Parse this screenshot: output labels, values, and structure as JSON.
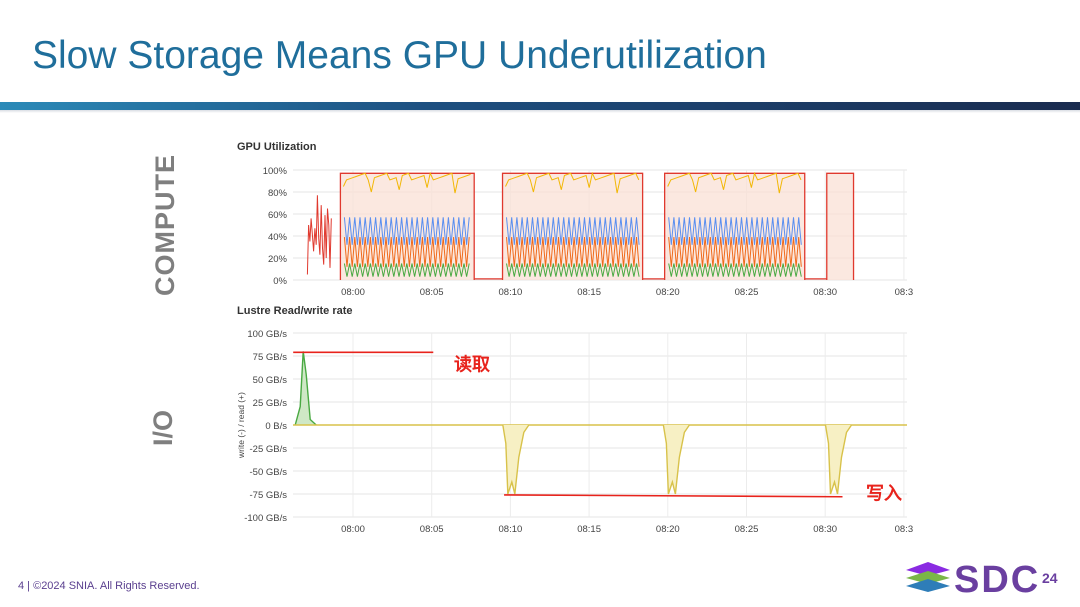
{
  "slide": {
    "title": "Slow Storage Means GPU Underutilization",
    "compute_label": "COMPUTE",
    "io_label": "I/O",
    "footer": "4 | ©2024 SNIA. All Rights Reserved.",
    "logo_text": "SDC",
    "logo_year": "24",
    "annotation_read": "读取",
    "annotation_write": "写入",
    "accent_color": "#1f6e9b",
    "annotation_color": "#e8231c"
  },
  "chart_data": [
    {
      "type": "line",
      "title": "GPU Utilization",
      "y_ticks": [
        "100%",
        "80%",
        "60%",
        "40%",
        "20%",
        "0%"
      ],
      "x_ticks": [
        "08:00",
        "08:05",
        "08:10",
        "08:15",
        "08:20",
        "08:25",
        "08:30",
        "08:3"
      ],
      "ylim": [
        0,
        100
      ],
      "grid": true,
      "series_colors": [
        "#e0392e",
        "#f2b705",
        "#5b8ff0",
        "#f06a1a",
        "#49a942"
      ],
      "busy_periods_minutes": [
        [
          -0.8,
          7.7
        ],
        [
          9.5,
          18.4
        ],
        [
          19.8,
          28.7
        ],
        [
          30.1,
          31.8
        ]
      ],
      "busy_levels_percent": {
        "top": 97,
        "blue_high": 57,
        "blue_low": 32,
        "orange_high": 39,
        "orange_low": 12,
        "green_high": 15,
        "green_low": 3
      }
    },
    {
      "type": "area",
      "title": "Lustre Read/write rate",
      "ylabel": "write (-) / read (+)",
      "y_ticks": [
        "100 GB/s",
        "75 GB/s",
        "50 GB/s",
        "25 GB/s",
        "0 B/s",
        "-25 GB/s",
        "-50 GB/s",
        "-75 GB/s",
        "-100 GB/s"
      ],
      "x_ticks": [
        "08:00",
        "08:05",
        "08:10",
        "08:15",
        "08:20",
        "08:25",
        "08:30",
        "08:3"
      ],
      "ylim": [
        -100,
        100
      ],
      "grid": true,
      "read_series_color": "#49a942",
      "write_series_color": "#d8c24a",
      "read_peak": {
        "x_minutes": -3.1,
        "value": 80
      },
      "write_dips": [
        {
          "x_minutes": 9.9,
          "value": -75
        },
        {
          "x_minutes": 20.1,
          "value": -75
        },
        {
          "x_minutes": 30.4,
          "value": -75
        }
      ]
    }
  ]
}
